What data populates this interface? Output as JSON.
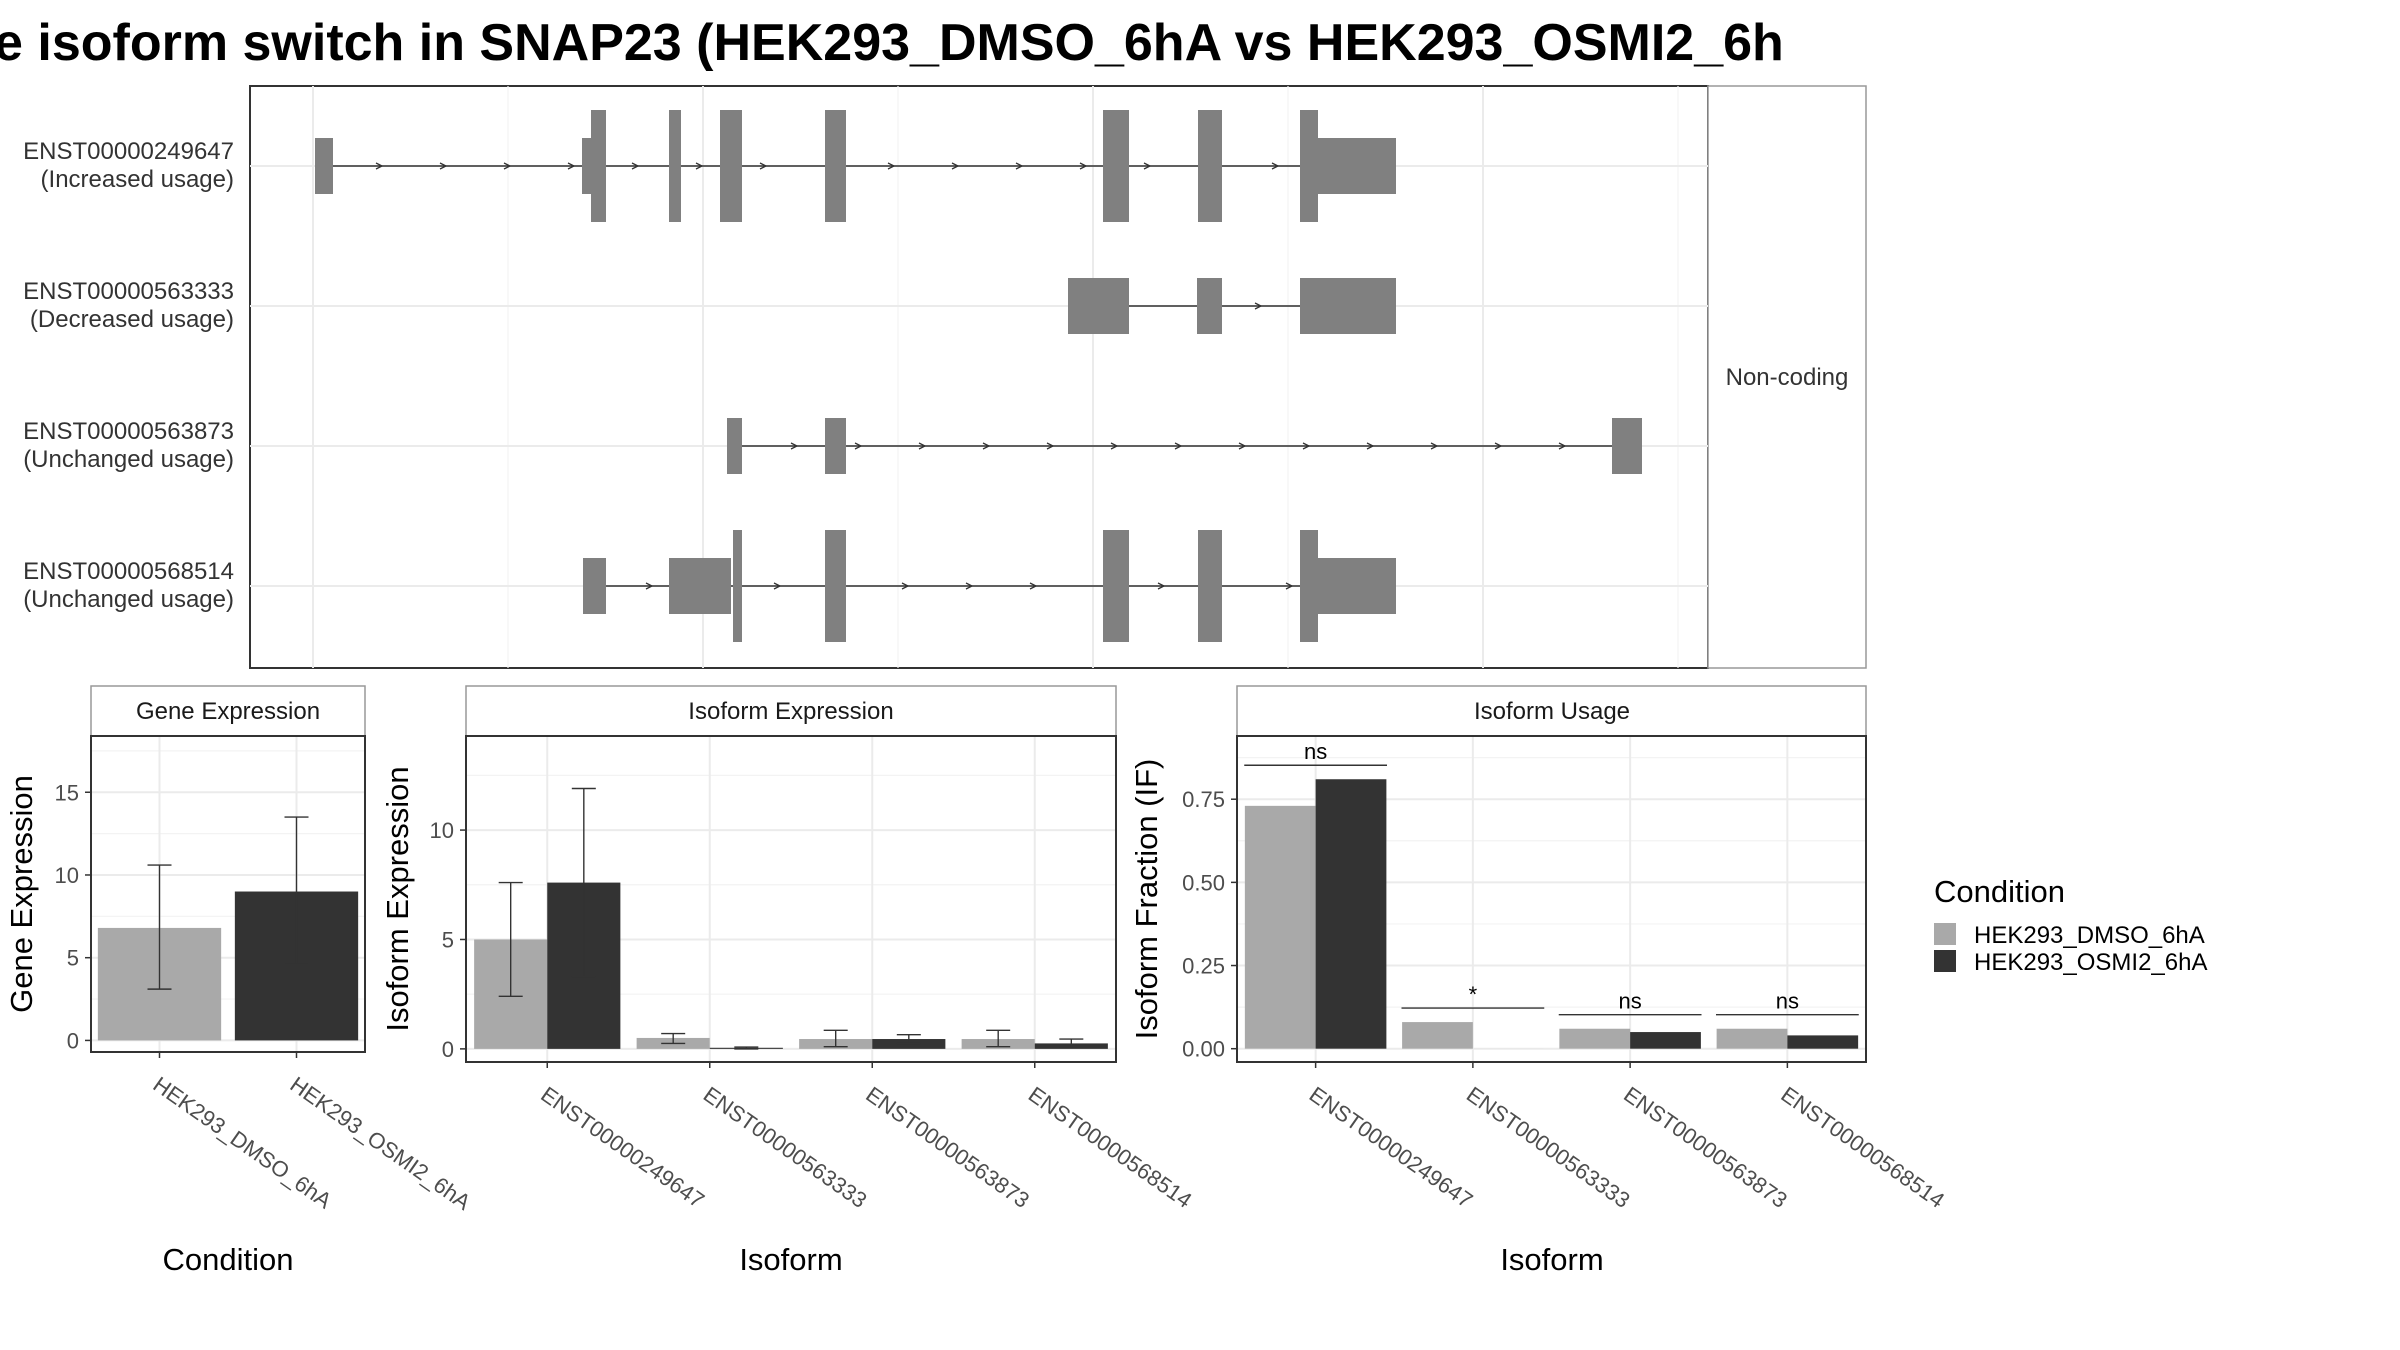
{
  "title": "e isoform switch in SNAP23 (HEK293_DMSO_6hA vs HEK293_OSMI2_6h",
  "colors": {
    "dmso": "#a9a9a9",
    "osmi2": "#333333",
    "exon": "#808080"
  },
  "legend": {
    "title": "Condition",
    "items": [
      {
        "label": "HEK293_DMSO_6hA",
        "color": "#a9a9a9"
      },
      {
        "label": "HEK293_OSMI2_6hA",
        "color": "#333333"
      }
    ]
  },
  "structure": {
    "strip_label": "Non-coding",
    "transcripts": [
      {
        "id": "ENST00000249647",
        "usage": "(Increased usage)"
      },
      {
        "id": "ENST00000563333",
        "usage": "(Decreased usage)"
      },
      {
        "id": "ENST00000563873",
        "usage": "(Unchanged usage)"
      },
      {
        "id": "ENST00000568514",
        "usage": "(Unchanged usage)"
      }
    ]
  },
  "chart_data": [
    {
      "type": "bar",
      "panel": "Gene Expression",
      "xlabel": "Condition",
      "ylabel": "Gene Expression",
      "ylim": [
        -0.7,
        18.4
      ],
      "yticks": [
        0,
        5,
        10,
        15
      ],
      "categories": [
        "HEK293_DMSO_6hA",
        "HEK293_OSMI2_6hA"
      ],
      "values": [
        6.8,
        9.0
      ],
      "error_low": [
        3.1,
        4.6
      ],
      "error_high": [
        10.6,
        13.5
      ]
    },
    {
      "type": "bar",
      "panel": "Isoform Expression",
      "xlabel": "Isoform",
      "ylabel": "Isoform Expression",
      "ylim": [
        -0.6,
        14.3
      ],
      "yticks": [
        0,
        5,
        10
      ],
      "categories": [
        "ENST00000249647",
        "ENST00000563333",
        "ENST00000563873",
        "ENST00000568514"
      ],
      "series": [
        {
          "name": "HEK293_DMSO_6hA",
          "values": [
            5.0,
            0.5,
            0.45,
            0.45
          ],
          "error_low": [
            2.4,
            0.25,
            0.1,
            0.1
          ],
          "error_high": [
            7.6,
            0.7,
            0.85,
            0.85
          ]
        },
        {
          "name": "HEK293_OSMI2_6hA",
          "values": [
            7.6,
            0.05,
            0.45,
            0.25
          ],
          "error_low": [
            3.3,
            0.0,
            0.25,
            0.05
          ],
          "error_high": [
            11.9,
            0.08,
            0.65,
            0.45
          ]
        }
      ]
    },
    {
      "type": "bar",
      "panel": "Isoform Usage",
      "xlabel": "Isoform",
      "ylabel": "Isoform Fraction (IF)",
      "ylim": [
        -0.04,
        0.94
      ],
      "yticks": [
        "0.00",
        "0.25",
        "0.50",
        "0.75"
      ],
      "categories": [
        "ENST00000249647",
        "ENST00000563333",
        "ENST00000563873",
        "ENST00000568514"
      ],
      "series": [
        {
          "name": "HEK293_DMSO_6hA",
          "values": [
            0.73,
            0.08,
            0.06,
            0.06
          ]
        },
        {
          "name": "HEK293_OSMI2_6hA",
          "values": [
            0.81,
            0.0,
            0.05,
            0.04
          ]
        }
      ],
      "significance": [
        "ns",
        "*",
        "ns",
        "ns"
      ]
    }
  ]
}
